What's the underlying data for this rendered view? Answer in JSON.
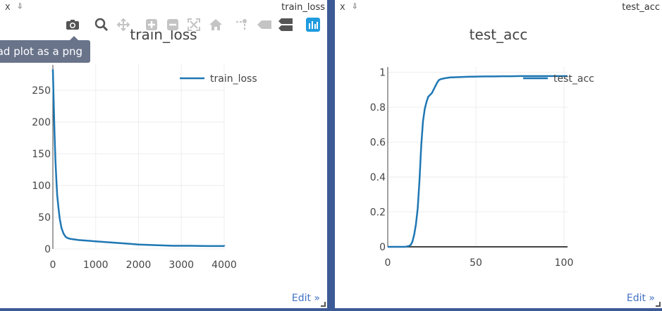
{
  "panes": [
    {
      "window_title": "train_loss",
      "close_label": "X",
      "pin_label": "⇩",
      "edit_label": "Edit »"
    },
    {
      "window_title": "test_acc",
      "close_label": "X",
      "pin_label": "⇩",
      "edit_label": "Edit »"
    }
  ],
  "toolbar": {
    "icons": [
      "camera-icon",
      "zoom-icon",
      "pan-icon",
      "zoom-in-icon",
      "zoom-out-icon",
      "autoscale-icon",
      "reset-axes-icon",
      "spike-lines-icon",
      "hover-closest-icon",
      "hover-compare-icon",
      "plotly-logo-icon"
    ],
    "tooltip": "Download plot as a png",
    "active_color": "#1f9bde",
    "icon_color": "#c4c4c4"
  },
  "chart_data": [
    {
      "type": "line",
      "title": "train_loss",
      "xlim": [
        0,
        4000
      ],
      "ylim": [
        0,
        290
      ],
      "xticks": [
        0,
        1000,
        2000,
        3000,
        4000
      ],
      "yticks": [
        0,
        50,
        100,
        150,
        200,
        250
      ],
      "grid": true,
      "legend": "top-right",
      "color": "#1f77b4",
      "series": [
        {
          "name": "train_loss",
          "x": [
            0,
            20,
            40,
            60,
            80,
            100,
            130,
            160,
            200,
            250,
            300,
            350,
            400,
            500,
            600,
            800,
            1000,
            1200,
            1400,
            1600,
            1800,
            2000,
            2400,
            2800,
            3200,
            3600,
            4000,
            4100
          ],
          "y": [
            283,
            230,
            180,
            140,
            110,
            85,
            65,
            48,
            33,
            24,
            19,
            17,
            16,
            15,
            14,
            13,
            12,
            11,
            10,
            9,
            8,
            7,
            6,
            5,
            5,
            4.5,
            4.5,
            4.2
          ]
        }
      ]
    },
    {
      "type": "line",
      "title": "test_acc",
      "xlim": [
        0,
        102
      ],
      "ylim": [
        0,
        1.03
      ],
      "xticks": [
        0,
        50,
        100
      ],
      "yticks": [
        0,
        0.2,
        0.4,
        0.6,
        0.8,
        1
      ],
      "ytick_labels": [
        "0",
        "0.2",
        "0.4",
        "0.6",
        "0.8",
        "1"
      ],
      "grid": true,
      "legend": "top-right",
      "color": "#1f77b4",
      "series": [
        {
          "name": "test_acc",
          "x": [
            0,
            5,
            10,
            12,
            13,
            14,
            15,
            16,
            17,
            18,
            19,
            20,
            21,
            22,
            23,
            24,
            25,
            26,
            27,
            28,
            29,
            30,
            32,
            35,
            40,
            45,
            50,
            55,
            60,
            65,
            70,
            75,
            80,
            85,
            90,
            95,
            100,
            102
          ],
          "y": [
            0,
            0,
            0,
            0.005,
            0.01,
            0.03,
            0.07,
            0.13,
            0.22,
            0.38,
            0.58,
            0.72,
            0.79,
            0.83,
            0.86,
            0.87,
            0.88,
            0.9,
            0.92,
            0.94,
            0.955,
            0.96,
            0.965,
            0.97,
            0.972,
            0.974,
            0.975,
            0.976,
            0.976,
            0.977,
            0.977,
            0.978,
            0.978,
            0.978,
            0.978,
            0.978,
            0.978,
            0.978
          ]
        }
      ]
    }
  ]
}
